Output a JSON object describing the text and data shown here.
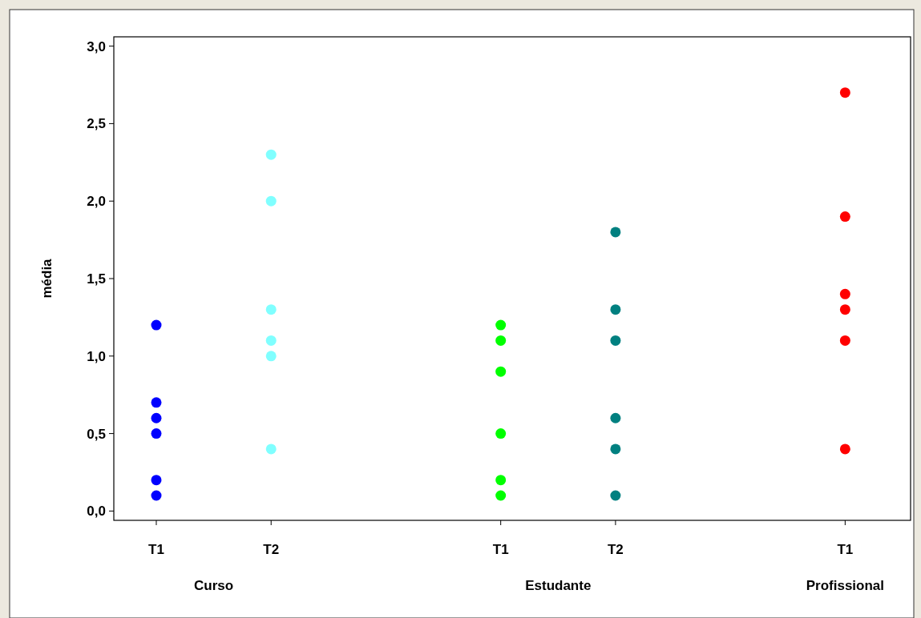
{
  "chart_data": {
    "type": "scatter",
    "ylabel": "média",
    "marker": "circle",
    "grid": false,
    "categories": [
      "T1",
      "T2",
      null,
      "T1",
      "T2",
      null,
      "T1"
    ],
    "ylim": [
      -0.06,
      3.06
    ],
    "yticks": [
      {
        "value": 0,
        "label": "0,0"
      },
      {
        "value": 0.5,
        "label": "0,5"
      },
      {
        "value": 1,
        "label": "1,0"
      },
      {
        "value": 1.5,
        "label": "1,5"
      },
      {
        "value": 2,
        "label": "2,0"
      },
      {
        "value": 2.5,
        "label": "2,5"
      },
      {
        "value": 3,
        "label": "3,0"
      }
    ],
    "series": [
      {
        "colors": [
          "#0000ff",
          "#80ffff",
          null,
          "#00ff00",
          "#008080",
          null,
          "#ff0000"
        ],
        "values": [
          1.2,
          2.3,
          null,
          1.2,
          1.8,
          null,
          2.7
        ]
      },
      {
        "colors": [
          "#0000ff",
          "#80ffff",
          null,
          "#00ff00",
          "#008080",
          null,
          "#ff0000"
        ],
        "values": [
          0.7,
          2.0,
          null,
          1.1,
          1.3,
          null,
          1.9
        ]
      },
      {
        "colors": [
          "#0000ff",
          "#80ffff",
          null,
          "#00ff00",
          "#008080",
          null,
          "#ff0000"
        ],
        "values": [
          0.6,
          1.3,
          null,
          0.9,
          1.1,
          null,
          1.4
        ]
      },
      {
        "colors": [
          "#0000ff",
          "#80ffff",
          null,
          "#00ff00",
          "#008080",
          null,
          "#ff0000"
        ],
        "values": [
          0.5,
          1.1,
          null,
          0.5,
          0.6,
          null,
          1.3
        ]
      },
      {
        "colors": [
          "#0000ff",
          "#80ffff",
          null,
          "#00ff00",
          "#008080",
          null,
          "#ff0000"
        ],
        "values": [
          0.2,
          1.0,
          null,
          0.2,
          0.4,
          null,
          1.1
        ]
      },
      {
        "colors": [
          "#0000ff",
          "#80ffff",
          null,
          "#00ff00",
          "#008080",
          null,
          "#ff0000"
        ],
        "values": [
          0.1,
          0.4,
          null,
          0.1,
          0.1,
          null,
          0.4
        ]
      }
    ],
    "annotations": [
      "Curso",
      "Estudante",
      "Profissional"
    ]
  }
}
